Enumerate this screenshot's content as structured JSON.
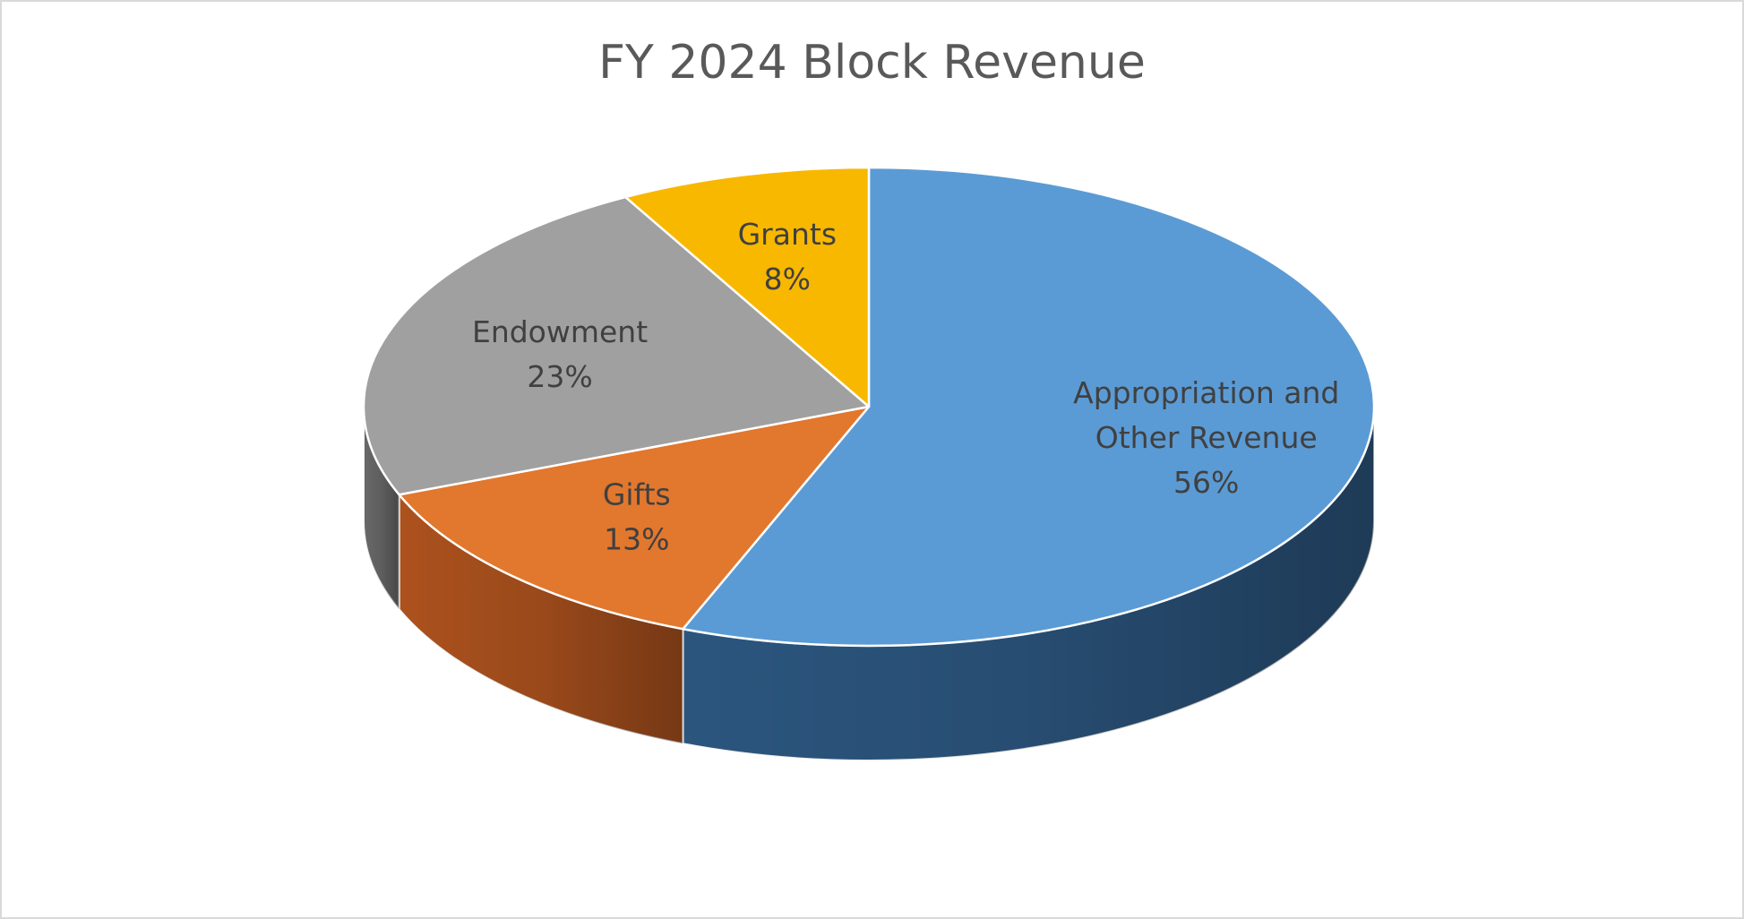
{
  "chart_data": {
    "type": "pie",
    "title": "FY 2024 Block Revenue",
    "style": "3d",
    "slices": [
      {
        "label": "Appropriation and Other Revenue",
        "label_lines": [
          "Appropriation and",
          "Other Revenue"
        ],
        "value": 56,
        "display": "56%",
        "color": "#5B9BD5",
        "side_color": "#2E5A85"
      },
      {
        "label": "Gifts",
        "label_lines": [
          "Gifts"
        ],
        "value": 13,
        "display": "13%",
        "color": "#E2772E",
        "side_color": "#B5561F"
      },
      {
        "label": "Endowment",
        "label_lines": [
          "Endowment"
        ],
        "value": 23,
        "display": "23%",
        "color": "#A0A0A0",
        "side_color": "#6E6E6E"
      },
      {
        "label": "Grants",
        "label_lines": [
          "Grants"
        ],
        "value": 8,
        "display": "8%",
        "color": "#F8B800",
        "side_color": "#B58600"
      }
    ],
    "start_angle": "12 o'clock",
    "direction": "clockwise",
    "legend": "none",
    "data_labels": "inside, category name and percentage"
  }
}
